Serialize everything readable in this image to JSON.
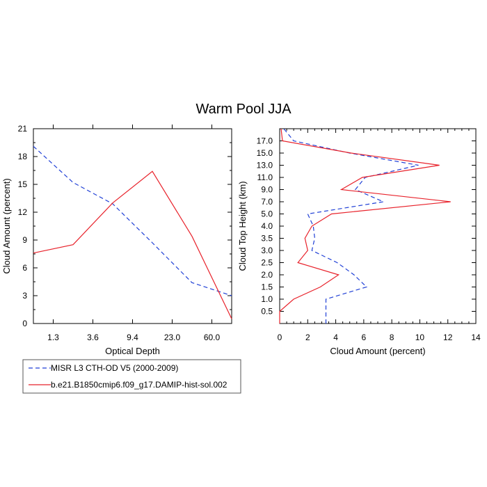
{
  "title": "Warm Pool JJA",
  "colors": {
    "misr": "#1f3fd6",
    "model": "#e8212a",
    "axis": "#000000"
  },
  "chart_data": [
    {
      "type": "line",
      "xlabel": "Optical Depth",
      "ylabel": "Cloud Amount (percent)",
      "ylim": [
        0,
        21
      ],
      "y_ticks": [
        "0",
        "3",
        "6",
        "9",
        "12",
        "15",
        "18",
        "21"
      ],
      "x_tick_labels": [
        "1.3",
        "3.6",
        "9.4",
        "23.0",
        "60.0"
      ],
      "x_bins": 6,
      "series": [
        {
          "name": "MISR L3 CTH-OD V5 (2000-2009)",
          "style": "dashed",
          "values": [
            19.1,
            15.2,
            12.9,
            8.7,
            4.4,
            3.0
          ]
        },
        {
          "name": "b.e21.B1850cmip6.f09_g17.DAMIP-hist-sol.002",
          "style": "solid",
          "values": [
            7.6,
            8.5,
            13.0,
            16.4,
            9.4,
            0.5
          ]
        }
      ]
    },
    {
      "type": "line",
      "xlabel": "Cloud Amount (percent)",
      "ylabel": "Cloud Top Height (km)",
      "xlim": [
        0,
        14
      ],
      "ylim": [
        0,
        18.25
      ],
      "x_ticks": [
        "0",
        "2",
        "4",
        "6",
        "8",
        "10",
        "12",
        "14"
      ],
      "y_ticks": [
        "0.5",
        "1.0",
        "1.5",
        "2.0",
        "2.5",
        "3.0",
        "3.5",
        "4.0",
        "5.0",
        "7.0",
        "9.0",
        "11.0",
        "13.0",
        "15.0",
        "17.0"
      ],
      "heights": [
        0.0,
        0.5,
        1.0,
        1.5,
        2.0,
        2.5,
        3.0,
        3.5,
        4.0,
        5.0,
        7.0,
        9.0,
        11.0,
        13.0,
        15.0,
        17.0,
        18.25
      ],
      "series": [
        {
          "name": "MISR L3 CTH-OD V5 (2000-2009)",
          "style": "dashed",
          "values": [
            3.3,
            3.3,
            3.3,
            6.2,
            5.3,
            4.1,
            2.3,
            2.5,
            2.4,
            2.0,
            7.4,
            5.4,
            6.1,
            9.9,
            5.0,
            1.0,
            0.3
          ]
        },
        {
          "name": "b.e21.B1850cmip6.f09_g17.DAMIP-hist-sol.002",
          "style": "solid",
          "values": [
            0.0,
            0.0,
            1.0,
            2.9,
            4.2,
            1.3,
            2.0,
            1.8,
            2.3,
            3.7,
            12.2,
            4.4,
            5.9,
            11.4,
            5.1,
            0.2,
            0.1
          ]
        }
      ]
    }
  ],
  "legend": [
    {
      "label": "MISR L3 CTH-OD V5 (2000-2009)",
      "style": "dashed"
    },
    {
      "label": "b.e21.B1850cmip6.f09_g17.DAMIP-hist-sol.002",
      "style": "solid"
    }
  ]
}
